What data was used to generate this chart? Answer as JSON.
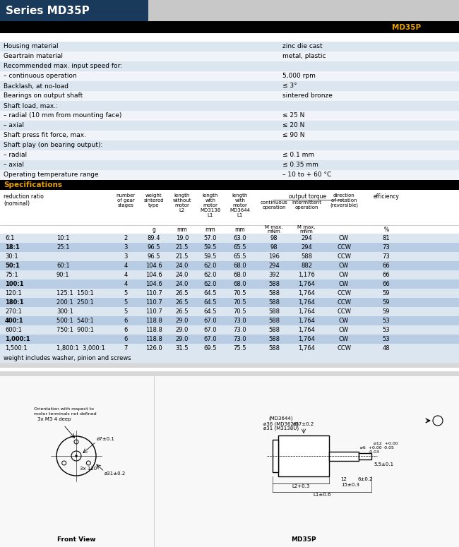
{
  "title": "Series MD35P",
  "title_bg": "#1a3a5c",
  "title_color": "#ffffff",
  "header_bg": "#000000",
  "spec_header": "MD35P",
  "general_specs": [
    [
      "Housing material",
      "zinc die cast"
    ],
    [
      "Geartrain material",
      "metal, plastic"
    ],
    [
      "Recommended max. input speed for:",
      ""
    ],
    [
      "– continuous operation",
      "5,000 rpm"
    ],
    [
      "Backlash, at no-load",
      "≤ 3°"
    ],
    [
      "Bearings on output shaft",
      "sintered bronze"
    ],
    [
      "Shaft load, max.:",
      ""
    ],
    [
      "– radial (10 mm from mounting face)",
      "≤ 25 N"
    ],
    [
      "– axial",
      "≤ 20 N"
    ],
    [
      "Shaft press fit force, max.",
      "≤ 90 N"
    ],
    [
      "Shaft play (on bearing output):",
      ""
    ],
    [
      "– radial",
      "≤ 0.1 mm"
    ],
    [
      "– axial",
      "≤ 0.35 mm"
    ],
    [
      "Operating temperature range",
      "– 10 to + 60 °C"
    ]
  ],
  "spec_section_title": "Specifications",
  "table_rows": [
    [
      "6:1",
      "10:1",
      "2",
      "89.4",
      "19.0",
      "57.0",
      "63.0",
      "98",
      "294",
      "CW",
      "81",
      false
    ],
    [
      "18:1",
      "25:1",
      "3",
      "96.5",
      "21.5",
      "59.5",
      "65.5",
      "98",
      "294",
      "CCW",
      "73",
      true
    ],
    [
      "30:1",
      "",
      "3",
      "96.5",
      "21.5",
      "59.5",
      "65.5",
      "196",
      "588",
      "CCW",
      "73",
      false
    ],
    [
      "50:1",
      "60:1",
      "4",
      "104.6",
      "24.0",
      "62.0",
      "68.0",
      "294",
      "882",
      "CW",
      "66",
      true
    ],
    [
      "75:1",
      "90:1",
      "4",
      "104.6",
      "24.0",
      "62.0",
      "68.0",
      "392",
      "1,176",
      "CW",
      "66",
      false
    ],
    [
      "100:1",
      "",
      "4",
      "104.6",
      "24.0",
      "62.0",
      "68.0",
      "588",
      "1,764",
      "CW",
      "66",
      true
    ],
    [
      "120:1",
      "125:1  150:1",
      "5",
      "110.7",
      "26.5",
      "64.5",
      "70.5",
      "588",
      "1,764",
      "CCW",
      "59",
      false
    ],
    [
      "180:1",
      "200:1  250:1",
      "5",
      "110.7",
      "26.5",
      "64.5",
      "70.5",
      "588",
      "1,764",
      "CCW",
      "59",
      true
    ],
    [
      "270:1",
      "300:1",
      "5",
      "110.7",
      "26.5",
      "64.5",
      "70.5",
      "588",
      "1,764",
      "CCW",
      "59",
      false
    ],
    [
      "400:1",
      "500:1  540:1",
      "6",
      "118.8",
      "29.0",
      "67.0",
      "73.0",
      "588",
      "1,764",
      "CW",
      "53",
      true
    ],
    [
      "600:1",
      "750:1  900:1",
      "6",
      "118.8",
      "29.0",
      "67.0",
      "73.0",
      "588",
      "1,764",
      "CW",
      "53",
      false
    ],
    [
      "1,000:1",
      "",
      "6",
      "118.8",
      "29.0",
      "67.0",
      "73.0",
      "588",
      "1,764",
      "CW",
      "53",
      true
    ],
    [
      "1,500:1",
      "1,800:1  3,000:1",
      "7",
      "126.0",
      "31.5",
      "69.5",
      "75.5",
      "588",
      "1,764",
      "CCW",
      "48",
      false
    ]
  ],
  "note": "weight includes washer, pinion and screws",
  "row_alt_color": "#dce6f1",
  "row_white": "#f0f4f8",
  "highlighted_row_color": "#b8cce4",
  "bg_color": "#ffffff"
}
